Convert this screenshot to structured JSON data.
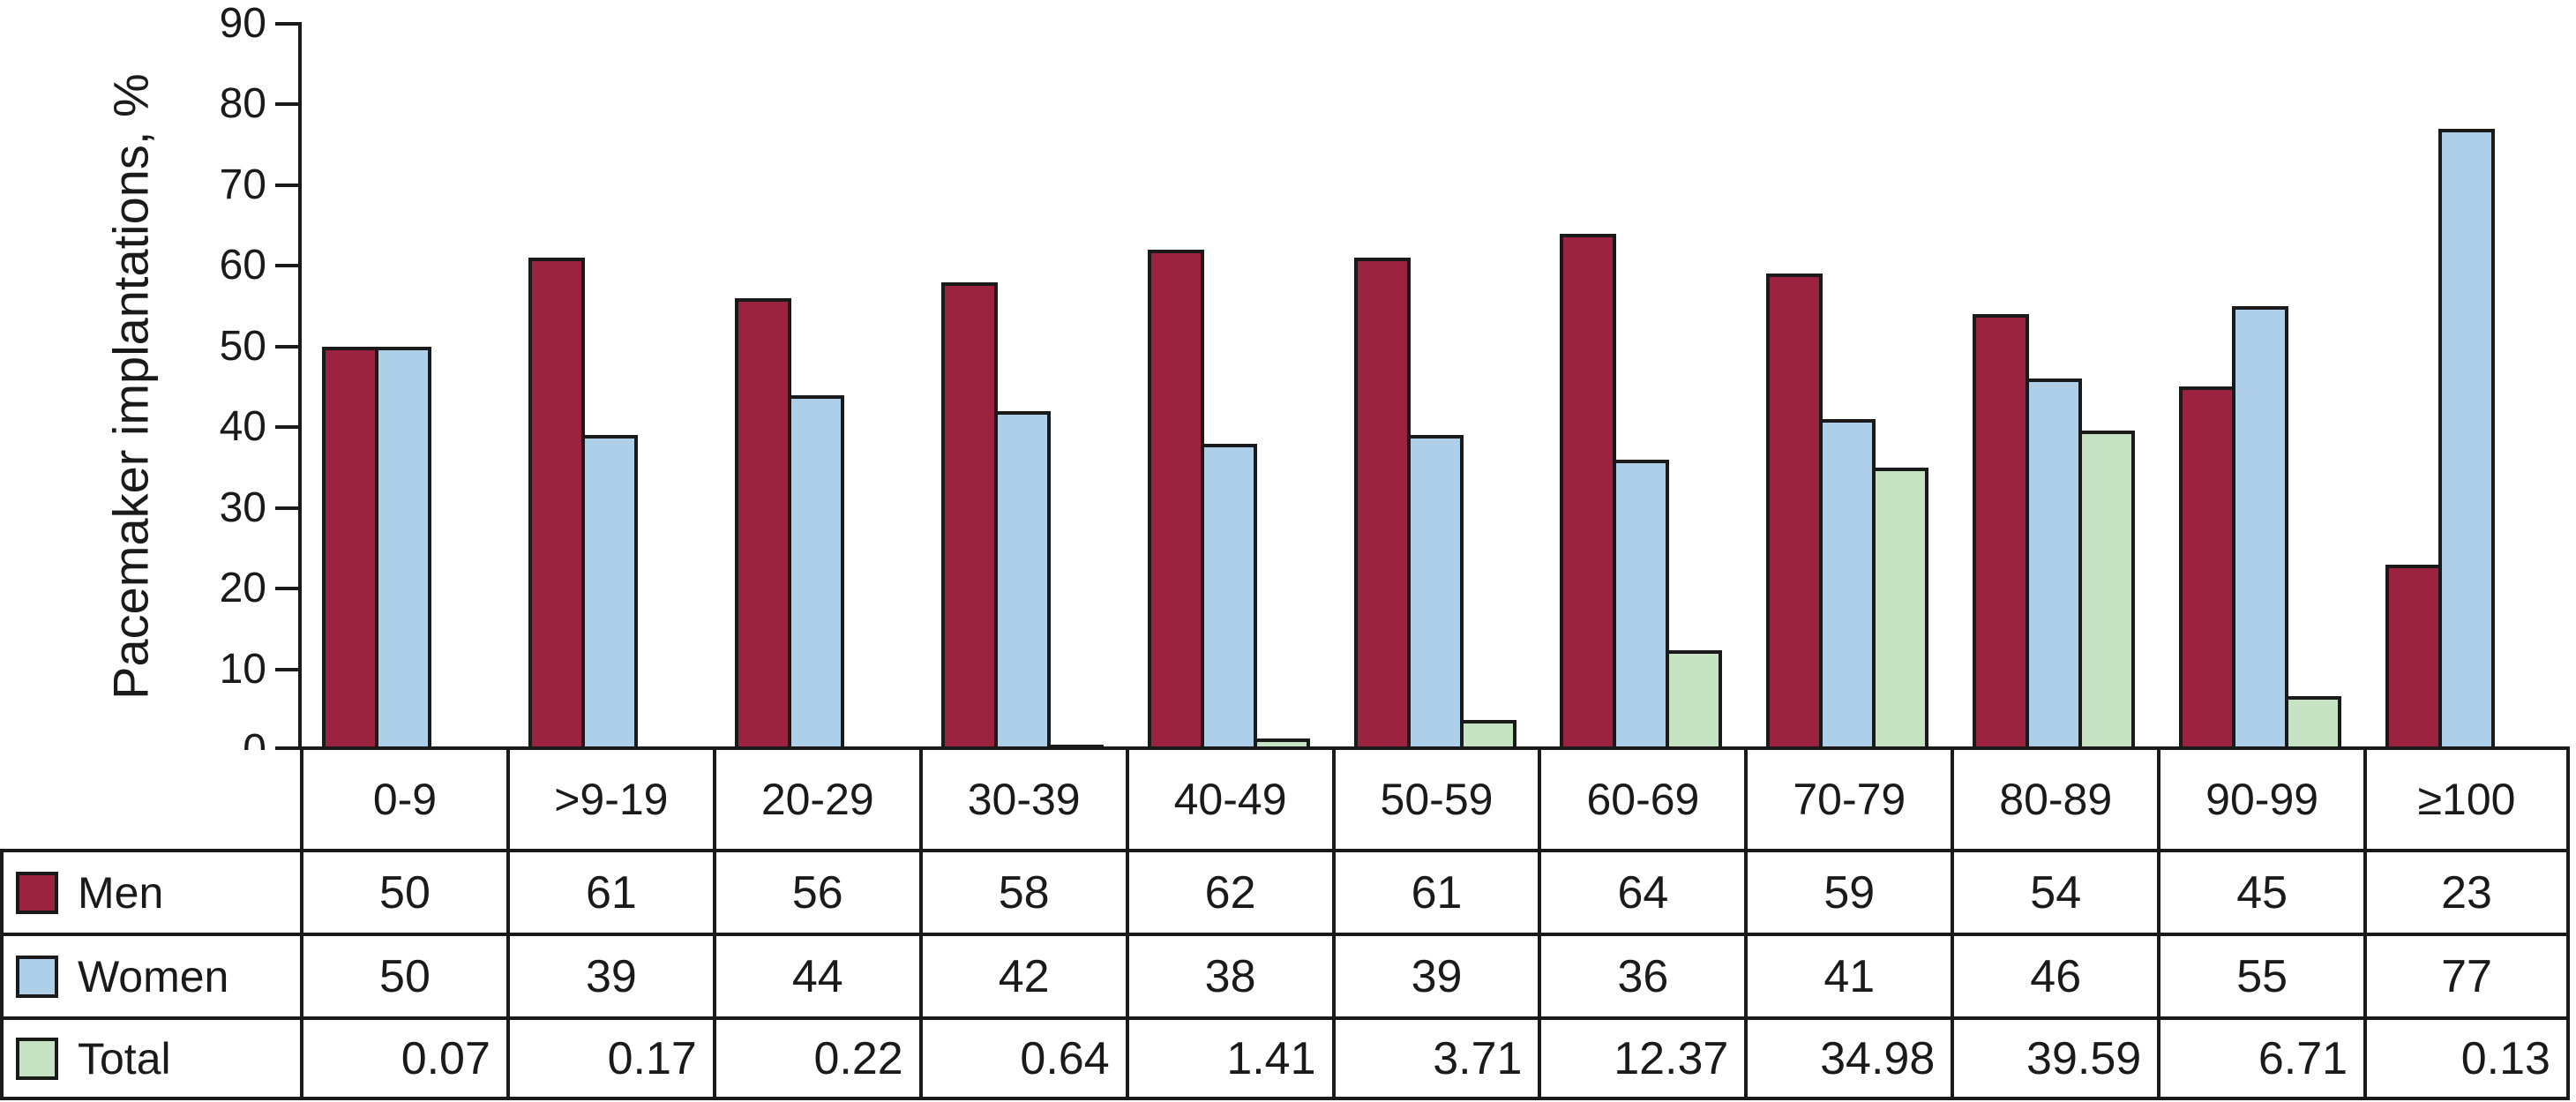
{
  "chart_data": {
    "type": "bar",
    "title": "",
    "xlabel": "",
    "ylabel": "Pacemaker implantations, %",
    "ylim": [
      0,
      90
    ],
    "yticks": [
      0,
      10,
      20,
      30,
      40,
      50,
      60,
      70,
      80,
      90
    ],
    "grid": false,
    "legend_position": "table-left",
    "categories": [
      "0-9",
      ">9-19",
      "20-29",
      "30-39",
      "40-49",
      "50-59",
      "60-69",
      "70-79",
      "80-89",
      "90-99",
      "≥100"
    ],
    "series": [
      {
        "name": "Men",
        "color": "#9c2340",
        "format": "int",
        "values": [
          50,
          61,
          56,
          58,
          62,
          61,
          64,
          59,
          54,
          45,
          23
        ]
      },
      {
        "name": "Women",
        "color": "#aecfea",
        "format": "int",
        "values": [
          50,
          39,
          44,
          42,
          38,
          39,
          36,
          41,
          46,
          55,
          77
        ]
      },
      {
        "name": "Total",
        "color": "#c6e3c4",
        "format": "2dp",
        "values": [
          0.07,
          0.17,
          0.22,
          0.64,
          1.41,
          3.71,
          12.37,
          34.98,
          39.59,
          6.71,
          0.13
        ]
      }
    ],
    "bar_outline_color": "#1a1a1a",
    "axis_color": "#1a1a1a"
  }
}
